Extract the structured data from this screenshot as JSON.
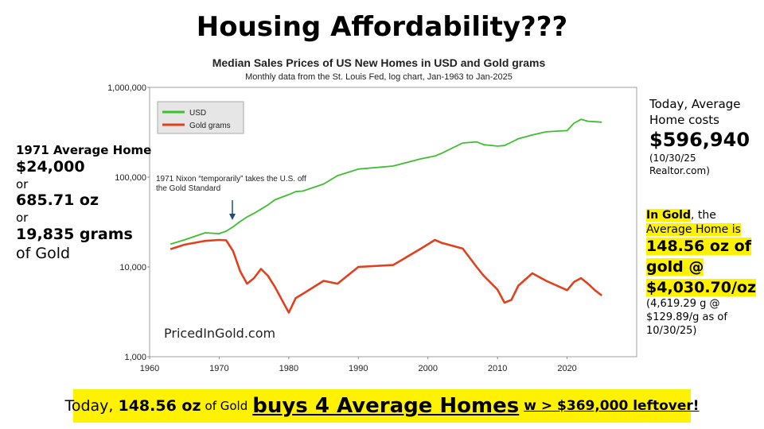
{
  "page": {
    "headline": "Housing Affordability???",
    "left": {
      "line1": "1971 Average Home",
      "line2": "$24,000",
      "line3": "or",
      "line4": "685.71 oz",
      "line5": "or",
      "line6": "19,835 grams",
      "line7": "of Gold"
    },
    "right_top": {
      "line1": "Today, Average Home costs",
      "price": "$596,940",
      "source": "(10/30/25 Realtor.com)"
    },
    "right_gold": {
      "highlight": "In Gold",
      "rest": ", the",
      "line2": "Average Home is",
      "big": "148.56 oz of gold @ $4,030.70/oz",
      "small": "(4,619.29 g @ $129.89/g as of 10/30/25)"
    },
    "banner": {
      "p1": "Today,",
      "p2": "148.56 oz",
      "p3": "of Gold",
      "p4": "buys 4 Average Homes",
      "p5": "w > $369,000 leftover!"
    }
  },
  "chart_data": {
    "type": "line",
    "title": "Median Sales Prices of US New Homes in USD and Gold grams",
    "subtitle": "Monthly data from the St. Louis Fed, log chart, Jan-1963 to Jan-2025",
    "annotation": "1971 Nixon “temporarily” takes the U.S. off the Gold Standard",
    "watermark": "PricedInGold.com",
    "x": [
      1963,
      1965,
      1968,
      1970,
      1971,
      1972,
      1973,
      1974,
      1975,
      1976,
      1977,
      1978,
      1980,
      1981,
      1982,
      1985,
      1987,
      1990,
      1995,
      1999,
      2001,
      2002,
      2005,
      2007,
      2008,
      2010,
      2011,
      2012,
      2013,
      2015,
      2017,
      2020,
      2021,
      2022,
      2023,
      2024,
      2025
    ],
    "series": [
      {
        "name": "USD",
        "color": "#3cbf2e",
        "values": [
          18000,
          20000,
          24000,
          23500,
          25000,
          28000,
          32000,
          36000,
          39500,
          44000,
          49000,
          56000,
          64000,
          69000,
          70000,
          84000,
          104000,
          123000,
          133000,
          160000,
          172000,
          185000,
          240000,
          247000,
          230000,
          222000,
          225000,
          245000,
          268000,
          295000,
          320000,
          330000,
          400000,
          440000,
          420000,
          415000,
          410000
        ]
      },
      {
        "name": "Gold grams",
        "color": "#e2401c",
        "values": [
          15800,
          17700,
          19500,
          20000,
          19800,
          15000,
          9000,
          6500,
          7500,
          9500,
          8000,
          6000,
          3100,
          4500,
          5000,
          7000,
          6500,
          10000,
          10500,
          16000,
          20000,
          18500,
          16000,
          10000,
          8000,
          5600,
          4000,
          4300,
          6200,
          8500,
          7000,
          5500,
          6800,
          7500,
          6500,
          5500,
          4800
        ]
      }
    ],
    "xlim": [
      1960,
      2030
    ],
    "xticks": [
      1960,
      1970,
      1980,
      1990,
      2000,
      2010,
      2020
    ],
    "ylim": [
      1000,
      1000000
    ],
    "yticks": [
      {
        "value": 1000,
        "label": "1,000"
      },
      {
        "value": 10000,
        "label": "10,000"
      },
      {
        "value": 100000,
        "label": "100,000"
      },
      {
        "value": 1000000,
        "label": "1,000,000"
      }
    ],
    "log_scale": true,
    "grid": false,
    "legend": "upper left"
  }
}
